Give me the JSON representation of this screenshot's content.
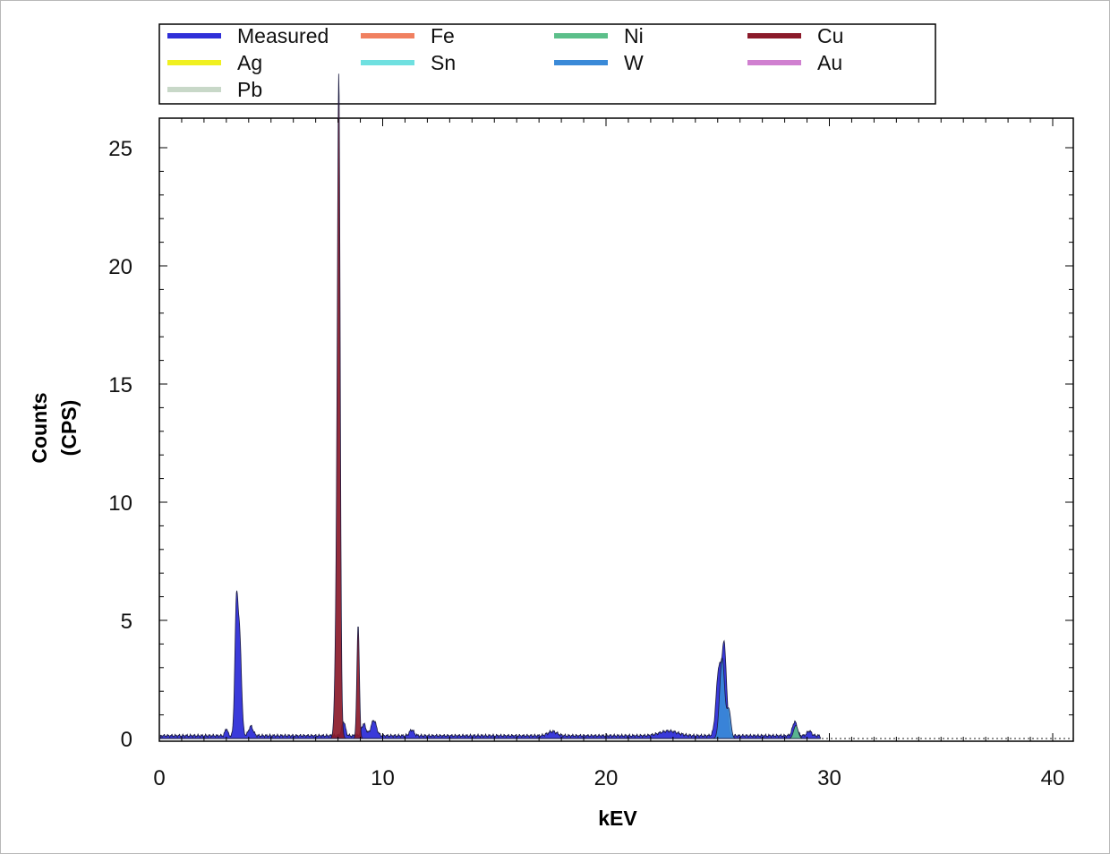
{
  "chart_data": {
    "type": "area",
    "xlabel": "kEV",
    "ylabel_lines": [
      "Counts",
      "(CPS)"
    ],
    "xlim": [
      0,
      41
    ],
    "ylim": [
      0,
      26
    ],
    "xticks": [
      0,
      10,
      20,
      30,
      40
    ],
    "yticks": [
      0,
      5,
      10,
      15,
      20,
      25
    ],
    "legend_position": "top",
    "legend": [
      {
        "name": "Measured",
        "color": "#2f2fd8"
      },
      {
        "name": "Fe",
        "color": "#f08060"
      },
      {
        "name": "Ni",
        "color": "#5cbf8a"
      },
      {
        "name": "Cu",
        "color": "#8b1a2a"
      },
      {
        "name": "Ag",
        "color": "#f0f020"
      },
      {
        "name": "Sn",
        "color": "#6fe0e0"
      },
      {
        "name": "W",
        "color": "#3a8ad8"
      },
      {
        "name": "Au",
        "color": "#d080d0"
      },
      {
        "name": "Pb",
        "color": "#c8d8c8"
      }
    ],
    "series": [
      {
        "name": "Measured",
        "color": "#2f2fd8",
        "peaks": [
          {
            "x": 3.0,
            "y": 0.3,
            "w": 0.06
          },
          {
            "x": 3.45,
            "y": 5.3,
            "w": 0.07
          },
          {
            "x": 3.6,
            "y": 4.0,
            "w": 0.08
          },
          {
            "x": 4.1,
            "y": 0.4,
            "w": 0.1
          },
          {
            "x": 8.25,
            "y": 0.6,
            "w": 0.08
          },
          {
            "x": 9.15,
            "y": 0.5,
            "w": 0.1
          },
          {
            "x": 9.6,
            "y": 0.65,
            "w": 0.12
          },
          {
            "x": 11.3,
            "y": 0.25,
            "w": 0.1
          },
          {
            "x": 17.6,
            "y": 0.18,
            "w": 0.2
          },
          {
            "x": 22.8,
            "y": 0.2,
            "w": 0.4
          },
          {
            "x": 25.05,
            "y": 2.8,
            "w": 0.12
          },
          {
            "x": 25.3,
            "y": 3.6,
            "w": 0.1
          },
          {
            "x": 28.45,
            "y": 0.6,
            "w": 0.1
          },
          {
            "x": 29.1,
            "y": 0.2,
            "w": 0.1
          }
        ]
      },
      {
        "name": "Cu",
        "color": "#8b1a2a",
        "peaks": [
          {
            "x": 8.04,
            "y": 18.5,
            "w": 0.055
          },
          {
            "x": 8.0,
            "y": 10.5,
            "w": 0.09
          },
          {
            "x": 8.9,
            "y": 4.8,
            "w": 0.055
          }
        ]
      },
      {
        "name": "W",
        "color": "#3a8ad8",
        "peaks": [
          {
            "x": 25.2,
            "y": 3.4,
            "w": 0.11
          },
          {
            "x": 25.5,
            "y": 1.2,
            "w": 0.09
          }
        ]
      },
      {
        "name": "Ni",
        "color": "#5cbf8a",
        "peaks": [
          {
            "x": 28.5,
            "y": 0.55,
            "w": 0.1
          }
        ]
      }
    ],
    "baseline": 0.12
  }
}
